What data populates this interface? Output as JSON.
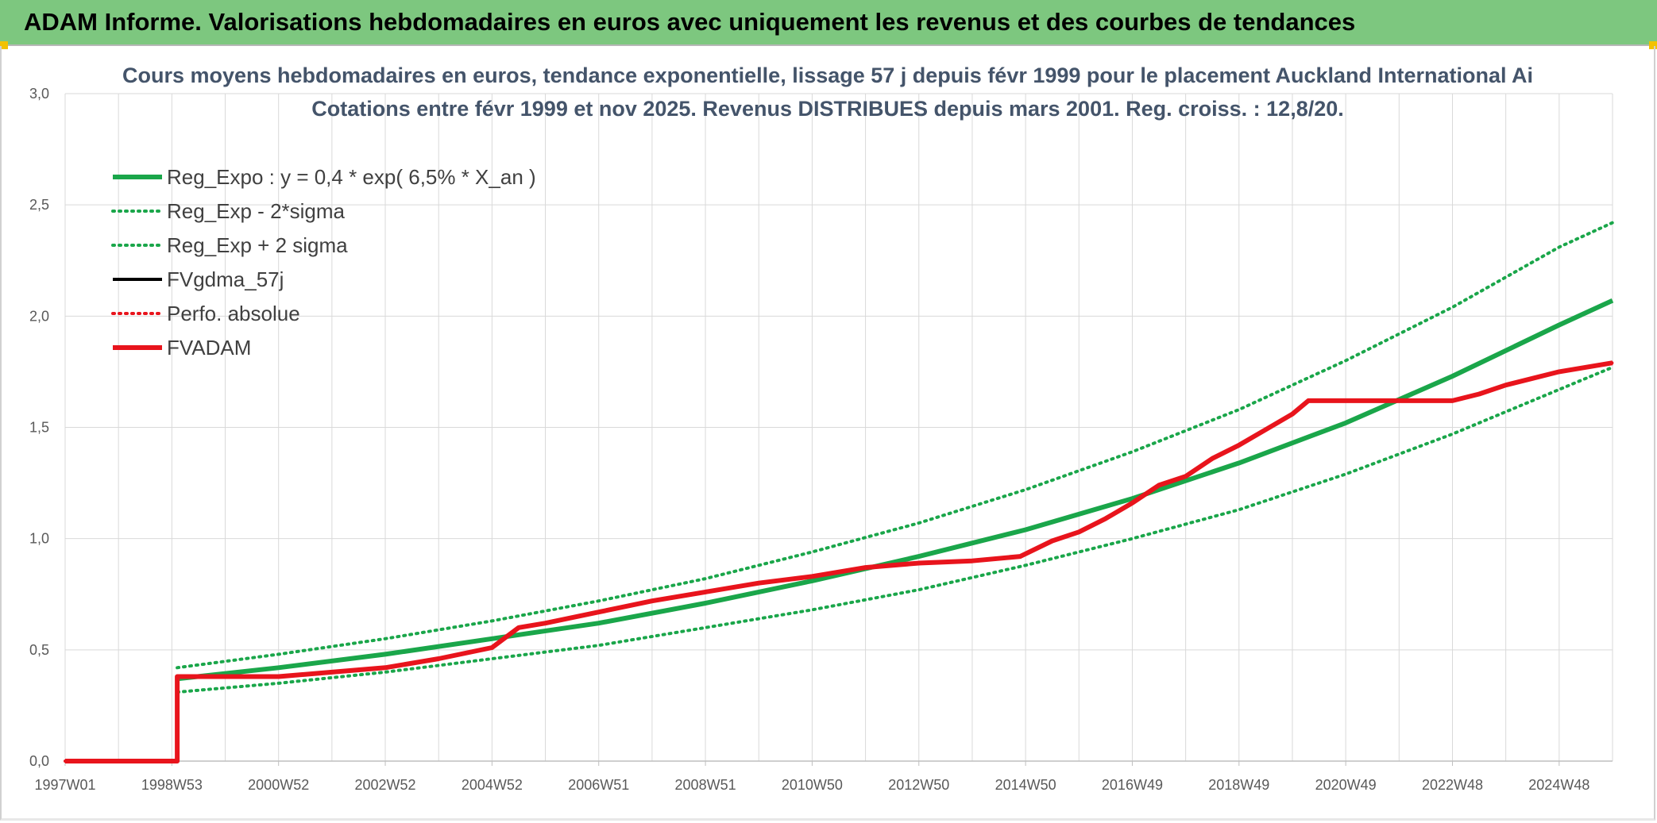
{
  "header": {
    "title": "ADAM Informe. Valorisations hebdomadaires en euros avec uniquement les revenus et des courbes de tendances"
  },
  "colors": {
    "header_bg": "#7dc77f",
    "trend": "#1aa64a",
    "fvgdma": "#000000",
    "fvadam": "#e8141c",
    "perfo": "#e8141c",
    "grid": "#d9d9d9"
  },
  "chart_data": {
    "type": "line",
    "title": "Cours moyens hebdomadaires en euros, tendance exponentielle, lissage 57 j depuis févr 1999 pour le placement Auckland International Ai",
    "subtitle": "Cotations entre févr 1999 et nov 2025. Revenus DISTRIBUES depuis mars 2001. Reg. croiss. : 12,8/20.",
    "xlabel": "",
    "ylabel": "",
    "x_tick_labels": [
      "1997W01",
      "1998W53",
      "2000W52",
      "2002W52",
      "2004W52",
      "2006W51",
      "2008W51",
      "2010W50",
      "2012W50",
      "2014W50",
      "2016W49",
      "2018W49",
      "2020W49",
      "2022W48",
      "2024W48"
    ],
    "x_range": [
      1997.0,
      2026.0
    ],
    "y_tick_labels": [
      "0,0",
      "0,5",
      "1,0",
      "1,5",
      "2,0",
      "2,5",
      "3,0"
    ],
    "ylim": [
      0,
      3
    ],
    "grid": true,
    "legend_position": "top-left",
    "series": [
      {
        "name": "Reg_Expo : y = 0,4 * exp( 6,5% *  X_an )",
        "style": "solid-thick",
        "color": "#1aa64a",
        "points": [
          [
            1999.1,
            0.37
          ],
          [
            2001.0,
            0.42
          ],
          [
            2003.0,
            0.48
          ],
          [
            2005.0,
            0.55
          ],
          [
            2007.0,
            0.62
          ],
          [
            2009.0,
            0.71
          ],
          [
            2011.0,
            0.81
          ],
          [
            2013.0,
            0.92
          ],
          [
            2015.0,
            1.04
          ],
          [
            2017.0,
            1.18
          ],
          [
            2019.0,
            1.34
          ],
          [
            2021.0,
            1.52
          ],
          [
            2023.0,
            1.73
          ],
          [
            2025.0,
            1.96
          ],
          [
            2026.0,
            2.07
          ]
        ]
      },
      {
        "name": "Reg_Exp - 2*sigma",
        "style": "dotted",
        "color": "#1aa64a",
        "points": [
          [
            1999.1,
            0.31
          ],
          [
            2001.0,
            0.35
          ],
          [
            2003.0,
            0.4
          ],
          [
            2005.0,
            0.46
          ],
          [
            2007.0,
            0.52
          ],
          [
            2009.0,
            0.6
          ],
          [
            2011.0,
            0.68
          ],
          [
            2013.0,
            0.77
          ],
          [
            2015.0,
            0.88
          ],
          [
            2017.0,
            1.0
          ],
          [
            2019.0,
            1.13
          ],
          [
            2021.0,
            1.29
          ],
          [
            2023.0,
            1.47
          ],
          [
            2025.0,
            1.67
          ],
          [
            2026.0,
            1.77
          ]
        ]
      },
      {
        "name": "Reg_Exp + 2 sigma",
        "style": "dotted",
        "color": "#1aa64a",
        "points": [
          [
            1999.1,
            0.42
          ],
          [
            2001.0,
            0.48
          ],
          [
            2003.0,
            0.55
          ],
          [
            2005.0,
            0.63
          ],
          [
            2007.0,
            0.72
          ],
          [
            2009.0,
            0.82
          ],
          [
            2011.0,
            0.94
          ],
          [
            2013.0,
            1.07
          ],
          [
            2015.0,
            1.22
          ],
          [
            2017.0,
            1.39
          ],
          [
            2019.0,
            1.58
          ],
          [
            2021.0,
            1.8
          ],
          [
            2023.0,
            2.04
          ],
          [
            2025.0,
            2.31
          ],
          [
            2026.0,
            2.42
          ]
        ]
      },
      {
        "name": "FVgdma_57j",
        "style": "solid",
        "color": "#000000",
        "points": [
          [
            1997.0,
            0.0
          ],
          [
            1999.1,
            0.0
          ],
          [
            1999.1,
            0.38
          ],
          [
            2001.0,
            0.38
          ],
          [
            2002.0,
            0.4
          ],
          [
            2003.0,
            0.42
          ],
          [
            2004.0,
            0.46
          ],
          [
            2005.0,
            0.51
          ],
          [
            2005.5,
            0.6
          ],
          [
            2006.0,
            0.62
          ],
          [
            2007.0,
            0.67
          ],
          [
            2008.0,
            0.72
          ],
          [
            2009.0,
            0.76
          ],
          [
            2010.0,
            0.8
          ],
          [
            2011.0,
            0.83
          ],
          [
            2012.0,
            0.87
          ],
          [
            2013.0,
            0.89
          ],
          [
            2014.0,
            0.9
          ],
          [
            2014.9,
            0.92
          ],
          [
            2015.5,
            0.99
          ],
          [
            2016.0,
            1.03
          ],
          [
            2016.5,
            1.09
          ],
          [
            2017.0,
            1.16
          ],
          [
            2017.5,
            1.24
          ],
          [
            2018.0,
            1.28
          ],
          [
            2018.5,
            1.36
          ],
          [
            2019.0,
            1.42
          ],
          [
            2019.5,
            1.49
          ],
          [
            2020.0,
            1.56
          ],
          [
            2020.3,
            1.62
          ],
          [
            2023.0,
            1.62
          ],
          [
            2023.5,
            1.65
          ],
          [
            2024.0,
            1.69
          ],
          [
            2024.5,
            1.72
          ],
          [
            2025.0,
            1.75
          ],
          [
            2025.5,
            1.77
          ],
          [
            2026.0,
            1.79
          ]
        ]
      },
      {
        "name": "Perfo. absolue",
        "style": "dotted",
        "color": "#e8141c",
        "points": [
          [
            1997.0,
            0.0
          ],
          [
            1999.1,
            0.0
          ],
          [
            1999.1,
            0.38
          ],
          [
            2001.0,
            0.38
          ],
          [
            2002.0,
            0.4
          ],
          [
            2003.0,
            0.42
          ],
          [
            2004.0,
            0.46
          ],
          [
            2005.0,
            0.51
          ],
          [
            2005.5,
            0.6
          ],
          [
            2006.0,
            0.62
          ],
          [
            2007.0,
            0.67
          ],
          [
            2008.0,
            0.72
          ],
          [
            2009.0,
            0.76
          ],
          [
            2010.0,
            0.8
          ],
          [
            2011.0,
            0.83
          ],
          [
            2012.0,
            0.87
          ],
          [
            2013.0,
            0.89
          ],
          [
            2014.0,
            0.9
          ],
          [
            2014.9,
            0.92
          ],
          [
            2015.5,
            0.99
          ],
          [
            2016.0,
            1.03
          ],
          [
            2016.5,
            1.09
          ],
          [
            2017.0,
            1.16
          ],
          [
            2017.5,
            1.24
          ],
          [
            2018.0,
            1.28
          ],
          [
            2018.5,
            1.36
          ],
          [
            2019.0,
            1.42
          ],
          [
            2019.5,
            1.49
          ],
          [
            2020.0,
            1.56
          ],
          [
            2020.3,
            1.62
          ],
          [
            2023.0,
            1.62
          ],
          [
            2023.5,
            1.65
          ],
          [
            2024.0,
            1.69
          ],
          [
            2024.5,
            1.72
          ],
          [
            2025.0,
            1.75
          ],
          [
            2025.5,
            1.77
          ],
          [
            2026.0,
            1.79
          ]
        ]
      },
      {
        "name": "FVADAM",
        "style": "solid-thick",
        "color": "#e8141c",
        "points": [
          [
            1997.0,
            0.0
          ],
          [
            1999.1,
            0.0
          ],
          [
            1999.1,
            0.38
          ],
          [
            2001.0,
            0.38
          ],
          [
            2002.0,
            0.4
          ],
          [
            2003.0,
            0.42
          ],
          [
            2004.0,
            0.46
          ],
          [
            2005.0,
            0.51
          ],
          [
            2005.5,
            0.6
          ],
          [
            2006.0,
            0.62
          ],
          [
            2007.0,
            0.67
          ],
          [
            2008.0,
            0.72
          ],
          [
            2009.0,
            0.76
          ],
          [
            2010.0,
            0.8
          ],
          [
            2011.0,
            0.83
          ],
          [
            2012.0,
            0.87
          ],
          [
            2013.0,
            0.89
          ],
          [
            2014.0,
            0.9
          ],
          [
            2014.9,
            0.92
          ],
          [
            2015.5,
            0.99
          ],
          [
            2016.0,
            1.03
          ],
          [
            2016.5,
            1.09
          ],
          [
            2017.0,
            1.16
          ],
          [
            2017.5,
            1.24
          ],
          [
            2018.0,
            1.28
          ],
          [
            2018.5,
            1.36
          ],
          [
            2019.0,
            1.42
          ],
          [
            2019.5,
            1.49
          ],
          [
            2020.0,
            1.56
          ],
          [
            2020.3,
            1.62
          ],
          [
            2023.0,
            1.62
          ],
          [
            2023.5,
            1.65
          ],
          [
            2024.0,
            1.69
          ],
          [
            2024.5,
            1.72
          ],
          [
            2025.0,
            1.75
          ],
          [
            2025.5,
            1.77
          ],
          [
            2026.0,
            1.79
          ]
        ]
      }
    ]
  }
}
